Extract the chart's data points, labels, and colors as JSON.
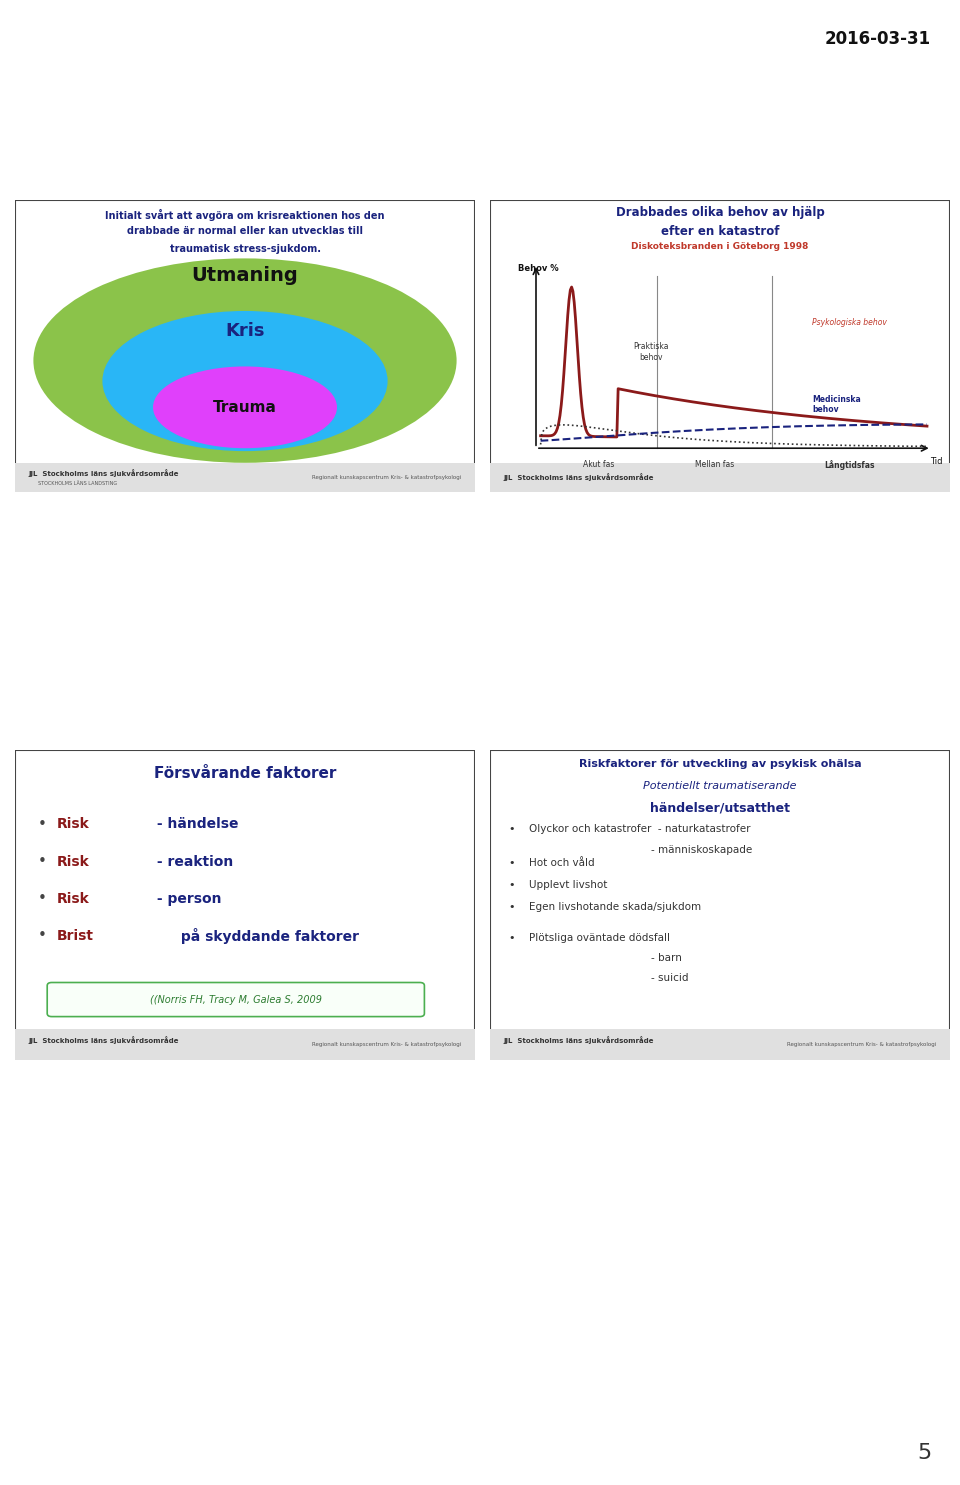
{
  "date_text": "2016-03-31",
  "page_num": "5",
  "bg_color": "#ffffff",
  "slide1": {
    "title_lines": [
      "Initialt svårt att avgöra om krisreaktionen hos den",
      "drabbade är normal eller kan utvecklas till",
      "traumatisk stress-sjukdom."
    ],
    "title_color": "#1a237e",
    "ellipse_outer_color": "#8bc34a",
    "ellipse_outer_label": "Utmaning",
    "ellipse_mid_color": "#29b6f6",
    "ellipse_mid_label": "Kris",
    "ellipse_inner_color": "#e040fb",
    "ellipse_inner_label": "Trauma",
    "footer_text": "Stockholms läns sjukvårdsområde",
    "footer_sub": "STOCKHOLMS LÄNS LANDSTING",
    "footer_right": "Regionalt kunskapscentrum Kris- & katastrofpsykologi"
  },
  "slide2": {
    "title": "Drabbades olika behov av hjälp",
    "title2": "efter en katastrof",
    "subtitle": "Diskoteksbranden i Göteborg 1998",
    "ylabel": "Behov %",
    "xlabel_right": "Tid",
    "phase1": "Akut fas",
    "phase2": "Mellan fas",
    "phase3": "Långtidsfas",
    "label_psyk": "Psykologiska behov",
    "label_prakt": "Praktiska\nbehov",
    "label_med": "Medicinska\nbehov",
    "title_color": "#1a237e",
    "subtitle_color": "#c0392b",
    "footer_text": "Stockholms läns sjukvårdsområde"
  },
  "slide3": {
    "title": "Försvårande faktorer",
    "title_color": "#1a237e",
    "bullets": [
      {
        "risk": "Risk",
        "rest": " - händelse"
      },
      {
        "risk": "Risk",
        "rest": " - reaktion"
      },
      {
        "risk": "Risk",
        "rest": " - person"
      },
      {
        "risk": "Brist",
        "rest": " på skyddande faktorer"
      }
    ],
    "risk_color": "#8b1a1a",
    "text_color": "#1a237e",
    "citation": "((Norris FH, Tracy M, Galea S, 2009",
    "citation_color": "#2e7d32",
    "footer_text": "Stockholms läns sjukvårdsområde",
    "footer_right": "Regionalt kunskapscentrum Kris- & katastrofpsykologi"
  },
  "slide4": {
    "title": "Riskfaktorer för utveckling av psykisk ohälsa",
    "title_color": "#1a237e",
    "subtitle_italic": "Potentiellt traumatiserande",
    "subtitle_bold": "händelser/utsatthet",
    "subtitle_bold_color": "#1a237e",
    "bullets": [
      {
        "text": "Olyckor och katastrofer  - naturkatastrofer",
        "sub": "- människoskapade"
      },
      {
        "text": "Hot och våld",
        "sub": ""
      },
      {
        "text": "Upplevt livshot",
        "sub": ""
      },
      {
        "text": "Egen livshotande skada/sjukdom",
        "sub": ""
      },
      {
        "text": "Plötsliga oväntade dödsfall",
        "sub": "- barn\n- suicid"
      }
    ],
    "bullet_color": "#333333",
    "footer_text": "Stockholms läns sjukvårdsområde",
    "footer_right": "Regionalt kunskapscentrum Kris- & katastrofpsykologi"
  }
}
